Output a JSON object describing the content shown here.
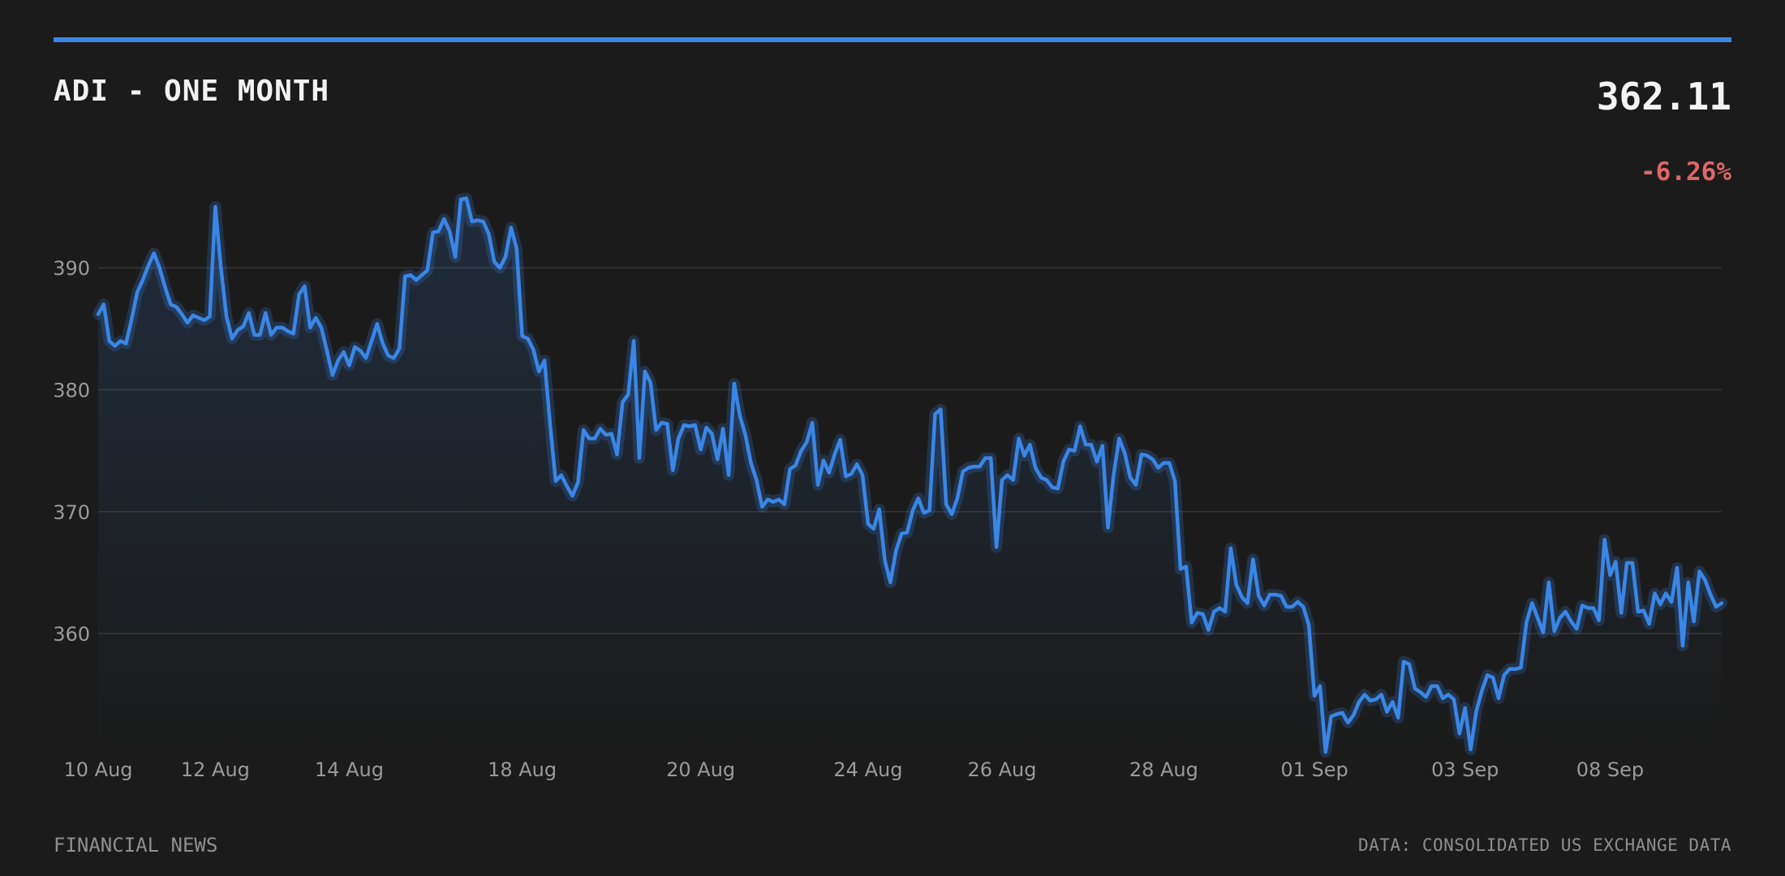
{
  "header": {
    "title": "ADI - ONE MONTH",
    "price": "362.11",
    "change": "-6.26%"
  },
  "footer": {
    "source_left": "FINANCIAL NEWS",
    "source_right": "DATA: CONSOLIDATED US EXCHANGE DATA"
  },
  "colors": {
    "background": "#1b1b1b",
    "line": "#3a86e6",
    "negative": "#e06666",
    "grid": "#333333",
    "text_muted": "#9a9a9a"
  },
  "chart_data": {
    "type": "line",
    "title": "ADI - ONE MONTH",
    "xlabel": "",
    "ylabel": "",
    "ylim": [
      350.3,
      396
    ],
    "yticks": [
      360,
      370,
      380,
      390
    ],
    "grid": "horizontal",
    "x_ticks": [
      {
        "label": "10 Aug",
        "index": 0
      },
      {
        "label": "12 Aug",
        "index": 21
      },
      {
        "label": "14 Aug",
        "index": 45
      },
      {
        "label": "18 Aug",
        "index": 76
      },
      {
        "label": "20 Aug",
        "index": 108
      },
      {
        "label": "24 Aug",
        "index": 138
      },
      {
        "label": "26 Aug",
        "index": 162
      },
      {
        "label": "28 Aug",
        "index": 191
      },
      {
        "label": "01 Sep",
        "index": 218
      },
      {
        "label": "03 Sep",
        "index": 245
      },
      {
        "label": "08 Sep",
        "index": 271
      }
    ],
    "series": [
      {
        "values": [
          386.2,
          387,
          384,
          383.6,
          384,
          383.8,
          385.8,
          388,
          389,
          390.2,
          391.2,
          390,
          388.4,
          387,
          386.8,
          386.2,
          385.5,
          386.1,
          385.9,
          385.7,
          386,
          395,
          390,
          386,
          384.2,
          384.9,
          385.2,
          386.3,
          384.5,
          384.5,
          386.3,
          384.5,
          385.1,
          385.1,
          384.8,
          384.6,
          387.8,
          388.5,
          385.1,
          385.9,
          385.1,
          383.2,
          381.2,
          382.4,
          383.1,
          382,
          383.5,
          383.2,
          382.6,
          384,
          385.4,
          383.8,
          382.8,
          382.6,
          383.4,
          389.3,
          389.4,
          389,
          389.4,
          389.8,
          392.9,
          393,
          394,
          393,
          390.9,
          395.6,
          395.7,
          393.8,
          393.9,
          393.8,
          392.8,
          390.5,
          390,
          390.9,
          393.3,
          391.6,
          384.4,
          384.2,
          383.3,
          381.5,
          382.4,
          377.2,
          372.5,
          373,
          372.1,
          371.3,
          372.4,
          376.7,
          376,
          376,
          376.8,
          376.3,
          376.4,
          374.7,
          379,
          379.6,
          384,
          374.4,
          381.5,
          380.6,
          376.7,
          377.3,
          377.2,
          373.4,
          376,
          377.1,
          377,
          377.1,
          375.1,
          376.9,
          376.4,
          374.3,
          376.8,
          373,
          380.5,
          377.9,
          376.3,
          374,
          372.6,
          370.4,
          371,
          370.8,
          371,
          370.6,
          373.5,
          373.8,
          375,
          375.7,
          377.3,
          372.2,
          374.2,
          373.2,
          374.7,
          375.9,
          372.9,
          373.1,
          373.9,
          373,
          369,
          368.6,
          370.2,
          366,
          364.2,
          366.8,
          368.2,
          368.3,
          370.1,
          371.1,
          369.9,
          370.1,
          378,
          378.4,
          370.6,
          369.8,
          371.1,
          373.3,
          373.6,
          373.7,
          373.7,
          374.4,
          374.4,
          367.1,
          372.6,
          373,
          372.6,
          376,
          374.6,
          375.5,
          373.6,
          372.8,
          372.6,
          372,
          371.9,
          374.1,
          375.1,
          375,
          377,
          375.5,
          375.5,
          374.1,
          375.4,
          368.7,
          373,
          376,
          374.8,
          372.8,
          372.2,
          374.7,
          374.6,
          374.3,
          373.6,
          374,
          374,
          372.5,
          365.3,
          365.5,
          360.9,
          361.7,
          361.6,
          360.3,
          361.8,
          362.1,
          361.8,
          367,
          364,
          363,
          362.5,
          366.1,
          363.1,
          362.3,
          363.2,
          363.2,
          363.1,
          362.2,
          362.2,
          362.6,
          362.2,
          360.7,
          354.9,
          355.7,
          350.3,
          353.2,
          353.4,
          353.5,
          352.7,
          353.3,
          354.4,
          355,
          354.5,
          354.6,
          355,
          353.6,
          354.4,
          353.1,
          357.7,
          357.5,
          355.5,
          355.2,
          354.8,
          355.7,
          355.7,
          354.7,
          355,
          354.6,
          351.8,
          353.9,
          350.5,
          353.6,
          355.3,
          356.6,
          356.4,
          354.7,
          356.6,
          357.1,
          357.1,
          357.2,
          360.9,
          362.5,
          361.3,
          360.1,
          364.2,
          360.2,
          361.3,
          361.8,
          361,
          360.4,
          362.3,
          362.1,
          362.1,
          361.1,
          367.7,
          364.8,
          365.9,
          361.7,
          365.8,
          365.8,
          361.8,
          361.9,
          360.8,
          363.3,
          362.4,
          363.3,
          362.6,
          365.4,
          359,
          364.2,
          361,
          365.1,
          364.4,
          363.2,
          362.2,
          362.5
        ]
      }
    ]
  }
}
